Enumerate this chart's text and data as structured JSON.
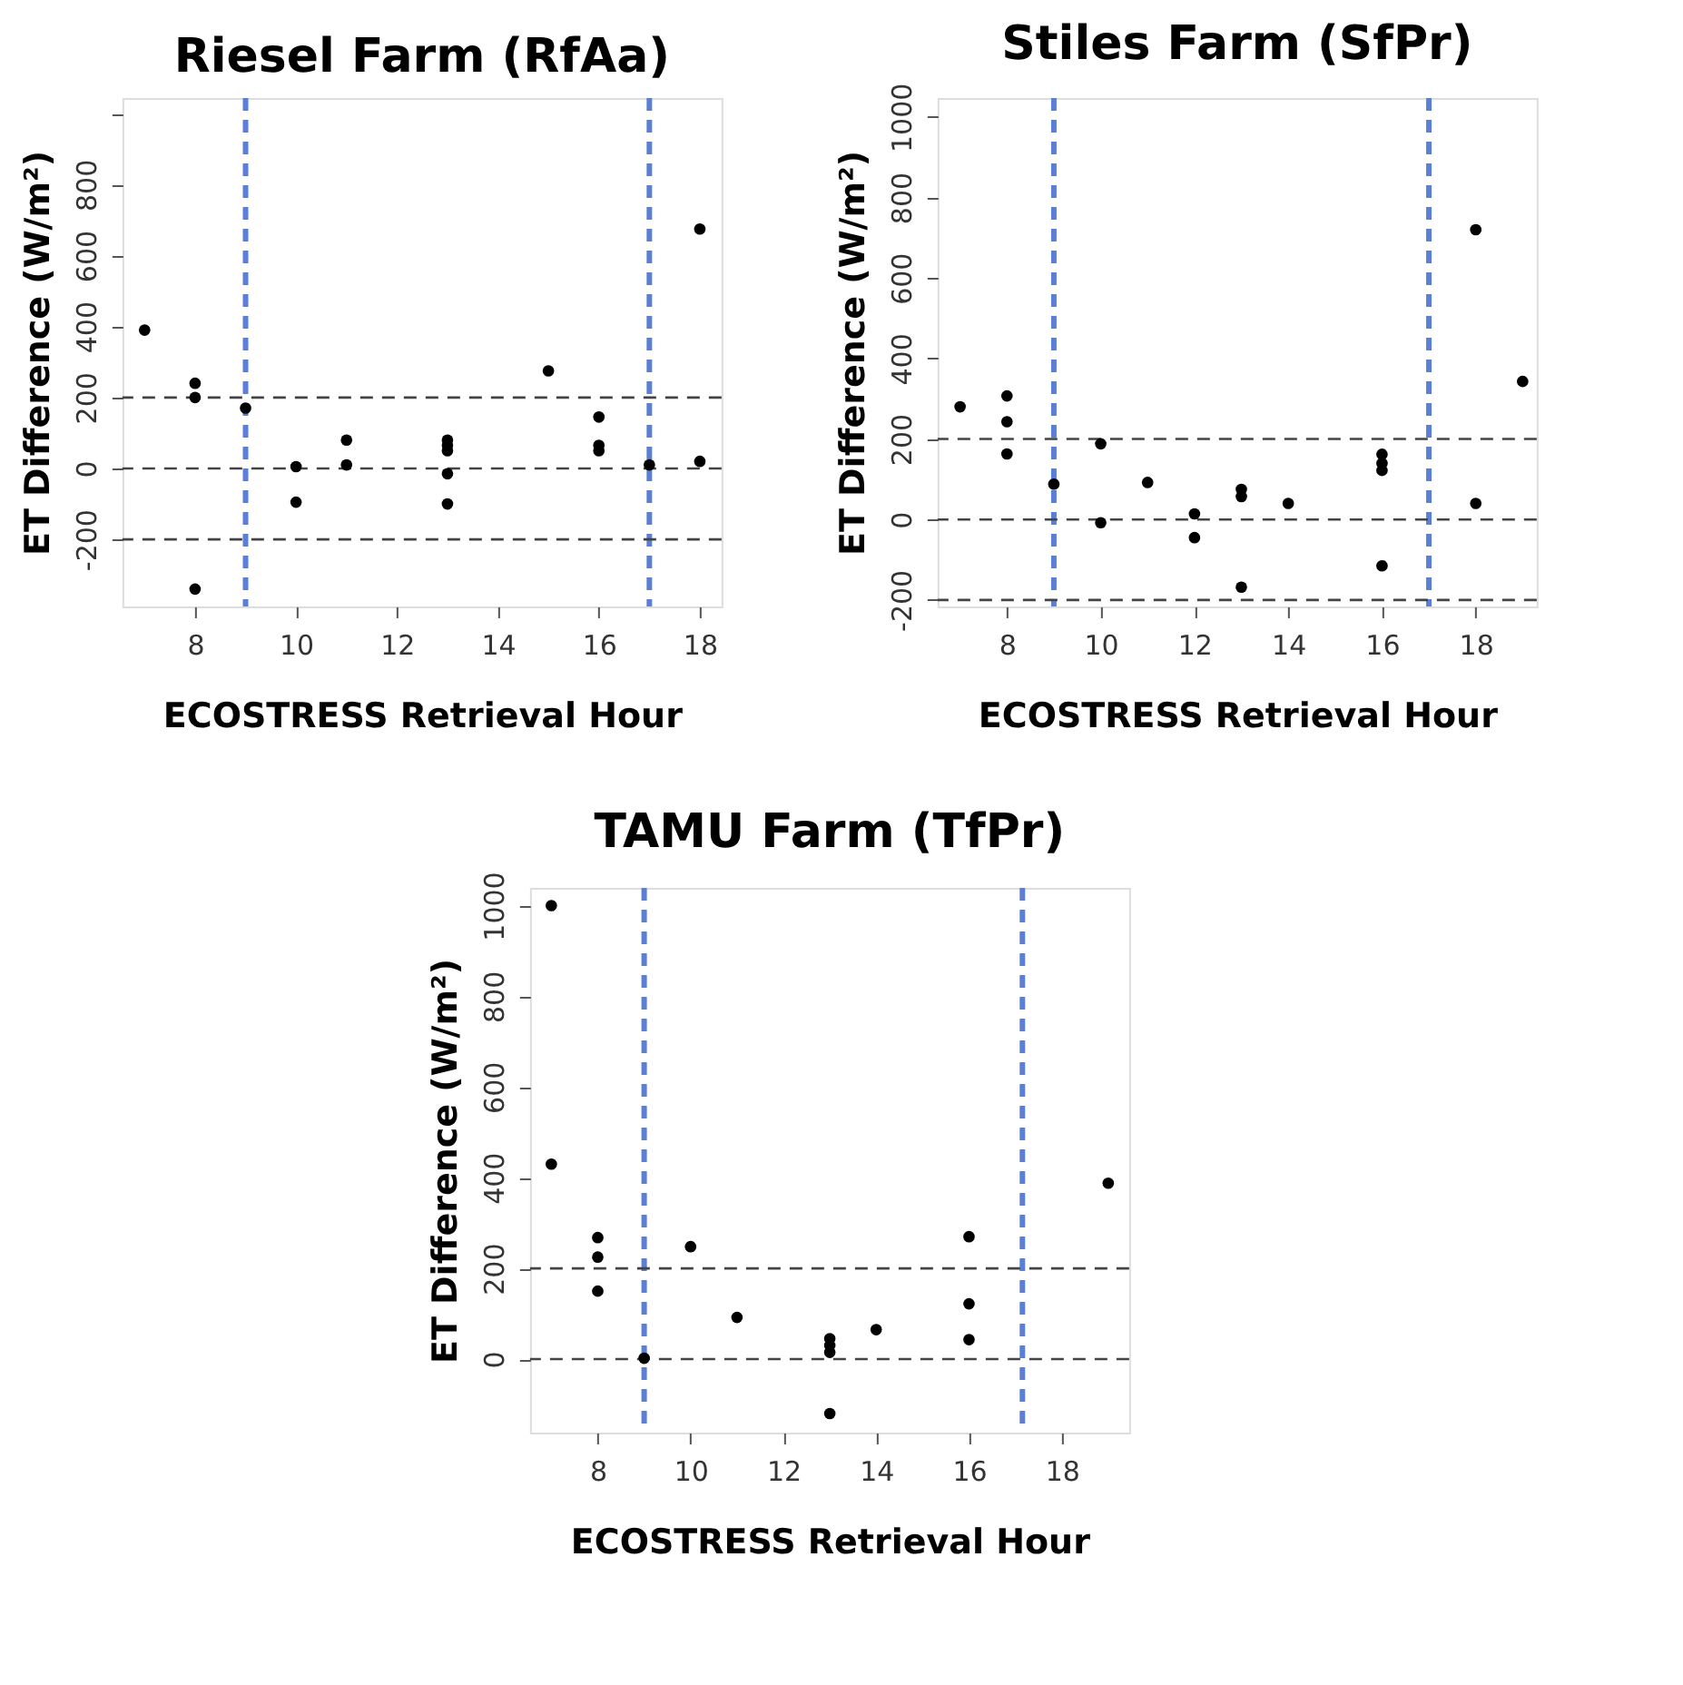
{
  "chart_data": [
    {
      "type": "scatter",
      "title": "Riesel Farm (RfAa)",
      "xlabel": "ECOSTRESS Retrieval Hour",
      "ylabel": "ET Difference (W/m²)",
      "marker": "circle",
      "grid": false,
      "xlim": [
        6.56,
        18.43
      ],
      "ylim": [
        -389,
        1044
      ],
      "xticks": [
        8,
        10,
        12,
        14,
        16,
        18
      ],
      "yticks": [
        -200,
        0,
        200,
        400,
        600,
        800,
        {
          "value": 1000,
          "label": null
        }
      ],
      "series": [
        {
          "color": "#000000",
          "x": [
            7,
            8,
            8,
            8,
            9,
            10,
            10,
            11,
            11,
            13,
            13,
            13,
            13,
            13,
            15,
            16,
            16,
            16,
            17,
            18,
            18
          ],
          "values": [
            390,
            240,
            200,
            -340,
            170,
            5,
            -95,
            80,
            10,
            80,
            65,
            50,
            -15,
            -100,
            275,
            145,
            65,
            50,
            10,
            675,
            20
          ]
        }
      ],
      "ref_lines": [
        {
          "axis": "x",
          "value": 9,
          "color": "#5b7fd6",
          "line_style": "dashed"
        },
        {
          "axis": "x",
          "value": 17,
          "color": "#5b7fd6",
          "line_style": "dashed"
        },
        {
          "axis": "y",
          "value": -200,
          "color": "#444444",
          "line_style": "dashed"
        },
        {
          "axis": "y",
          "value": 0,
          "color": "#444444",
          "line_style": "dashed"
        },
        {
          "axis": "y",
          "value": 200,
          "color": "#444444",
          "line_style": "dashed"
        }
      ]
    },
    {
      "type": "scatter",
      "title": "Stiles Farm (SfPr)",
      "xlabel": "ECOSTRESS Retrieval Hour",
      "ylabel": "ET Difference (W/m²)",
      "marker": "circle",
      "grid": false,
      "xlim": [
        6.52,
        19.3
      ],
      "ylim": [
        -216,
        1047
      ],
      "xticks": [
        8,
        10,
        12,
        14,
        16,
        18
      ],
      "yticks": [
        -200,
        0,
        200,
        400,
        600,
        800,
        1000
      ],
      "series": [
        {
          "color": "#000000",
          "x": [
            7,
            8,
            8,
            8,
            9,
            10,
            10,
            11,
            12,
            12,
            13,
            13,
            13,
            14,
            16,
            16,
            16,
            16,
            18,
            18,
            19
          ],
          "values": [
            280,
            307,
            243,
            163,
            88,
            188,
            -8,
            92,
            14,
            -45,
            75,
            57,
            -168,
            40,
            162,
            140,
            122,
            -115,
            720,
            40,
            343
          ]
        }
      ],
      "ref_lines": [
        {
          "axis": "x",
          "value": 9,
          "color": "#5b7fd6",
          "line_style": "dashed"
        },
        {
          "axis": "x",
          "value": 17,
          "color": "#5b7fd6",
          "line_style": "dashed"
        },
        {
          "axis": "y",
          "value": -200,
          "color": "#444444",
          "line_style": "dashed"
        },
        {
          "axis": "y",
          "value": 0,
          "color": "#444444",
          "line_style": "dashed"
        },
        {
          "axis": "y",
          "value": 200,
          "color": "#444444",
          "line_style": "dashed"
        }
      ]
    },
    {
      "type": "scatter",
      "title": "TAMU Farm (TfPr)",
      "xlabel": "ECOSTRESS Retrieval Hour",
      "ylabel": "ET Difference (W/m²)",
      "marker": "circle",
      "grid": false,
      "xlim": [
        6.54,
        19.45
      ],
      "ylim": [
        -162,
        1039
      ],
      "xticks": [
        8,
        10,
        12,
        14,
        16,
        18
      ],
      "yticks": [
        0,
        200,
        400,
        600,
        800,
        1000
      ],
      "series": [
        {
          "color": "#000000",
          "x": [
            7,
            7,
            8,
            8,
            8,
            9,
            10,
            11,
            13,
            13,
            13,
            13,
            14,
            16,
            16,
            16,
            19
          ],
          "values": [
            1000,
            430,
            268,
            225,
            150,
            2,
            248,
            92,
            45,
            30,
            15,
            -120,
            65,
            270,
            122,
            43,
            388
          ]
        }
      ],
      "ref_lines": [
        {
          "axis": "x",
          "value": 9,
          "color": "#5b7fd6",
          "line_style": "dashed"
        },
        {
          "axis": "x",
          "value": 17.15,
          "color": "#5b7fd6",
          "line_style": "dashed"
        },
        {
          "axis": "y",
          "value": 0,
          "color": "#444444",
          "line_style": "dashed"
        },
        {
          "axis": "y",
          "value": 200,
          "color": "#444444",
          "line_style": "dashed"
        }
      ]
    }
  ]
}
